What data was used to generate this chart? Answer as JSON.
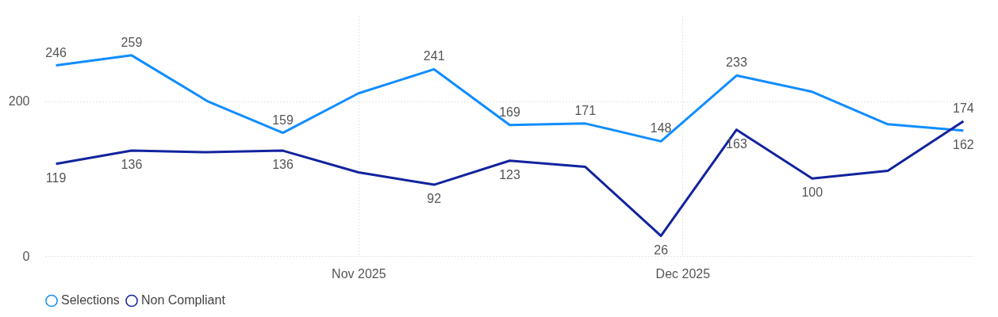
{
  "chart_data": {
    "type": "line",
    "x": [
      "2025-10-04",
      "2025-10-11",
      "2025-10-18",
      "2025-10-25",
      "2025-11-01",
      "2025-11-08",
      "2025-11-15",
      "2025-11-22",
      "2025-11-29",
      "2025-12-06",
      "2025-12-13",
      "2025-12-20",
      "2025-12-27"
    ],
    "series": [
      {
        "name": "Selections",
        "color": "#118dff",
        "values": [
          246,
          259,
          200,
          159,
          210,
          241,
          169,
          171,
          148,
          233,
          212,
          170,
          162
        ],
        "value_labels": [
          "246",
          "259",
          null,
          "159",
          null,
          "241",
          "169",
          "171",
          "148",
          "233",
          null,
          null,
          "162"
        ]
      },
      {
        "name": "Non Compliant",
        "color": "#12239e",
        "values": [
          119,
          136,
          134,
          136,
          108,
          92,
          123,
          115,
          26,
          163,
          100,
          110,
          174
        ],
        "value_labels": [
          "119",
          "136",
          null,
          "136",
          null,
          "92",
          "123",
          null,
          "26",
          "163",
          "100",
          null,
          "174"
        ]
      }
    ],
    "xlim": [
      "2025-10-03",
      "2025-12-28"
    ],
    "xticks": [
      {
        "value": "2025-11-01",
        "label": "Nov 2025"
      },
      {
        "value": "2025-12-01",
        "label": "Dec 2025"
      }
    ],
    "ylim": [
      0,
      310
    ],
    "yticks": [
      0,
      200
    ],
    "grid": true,
    "legend": "bottom",
    "marker": "none",
    "line_style": "solid"
  }
}
